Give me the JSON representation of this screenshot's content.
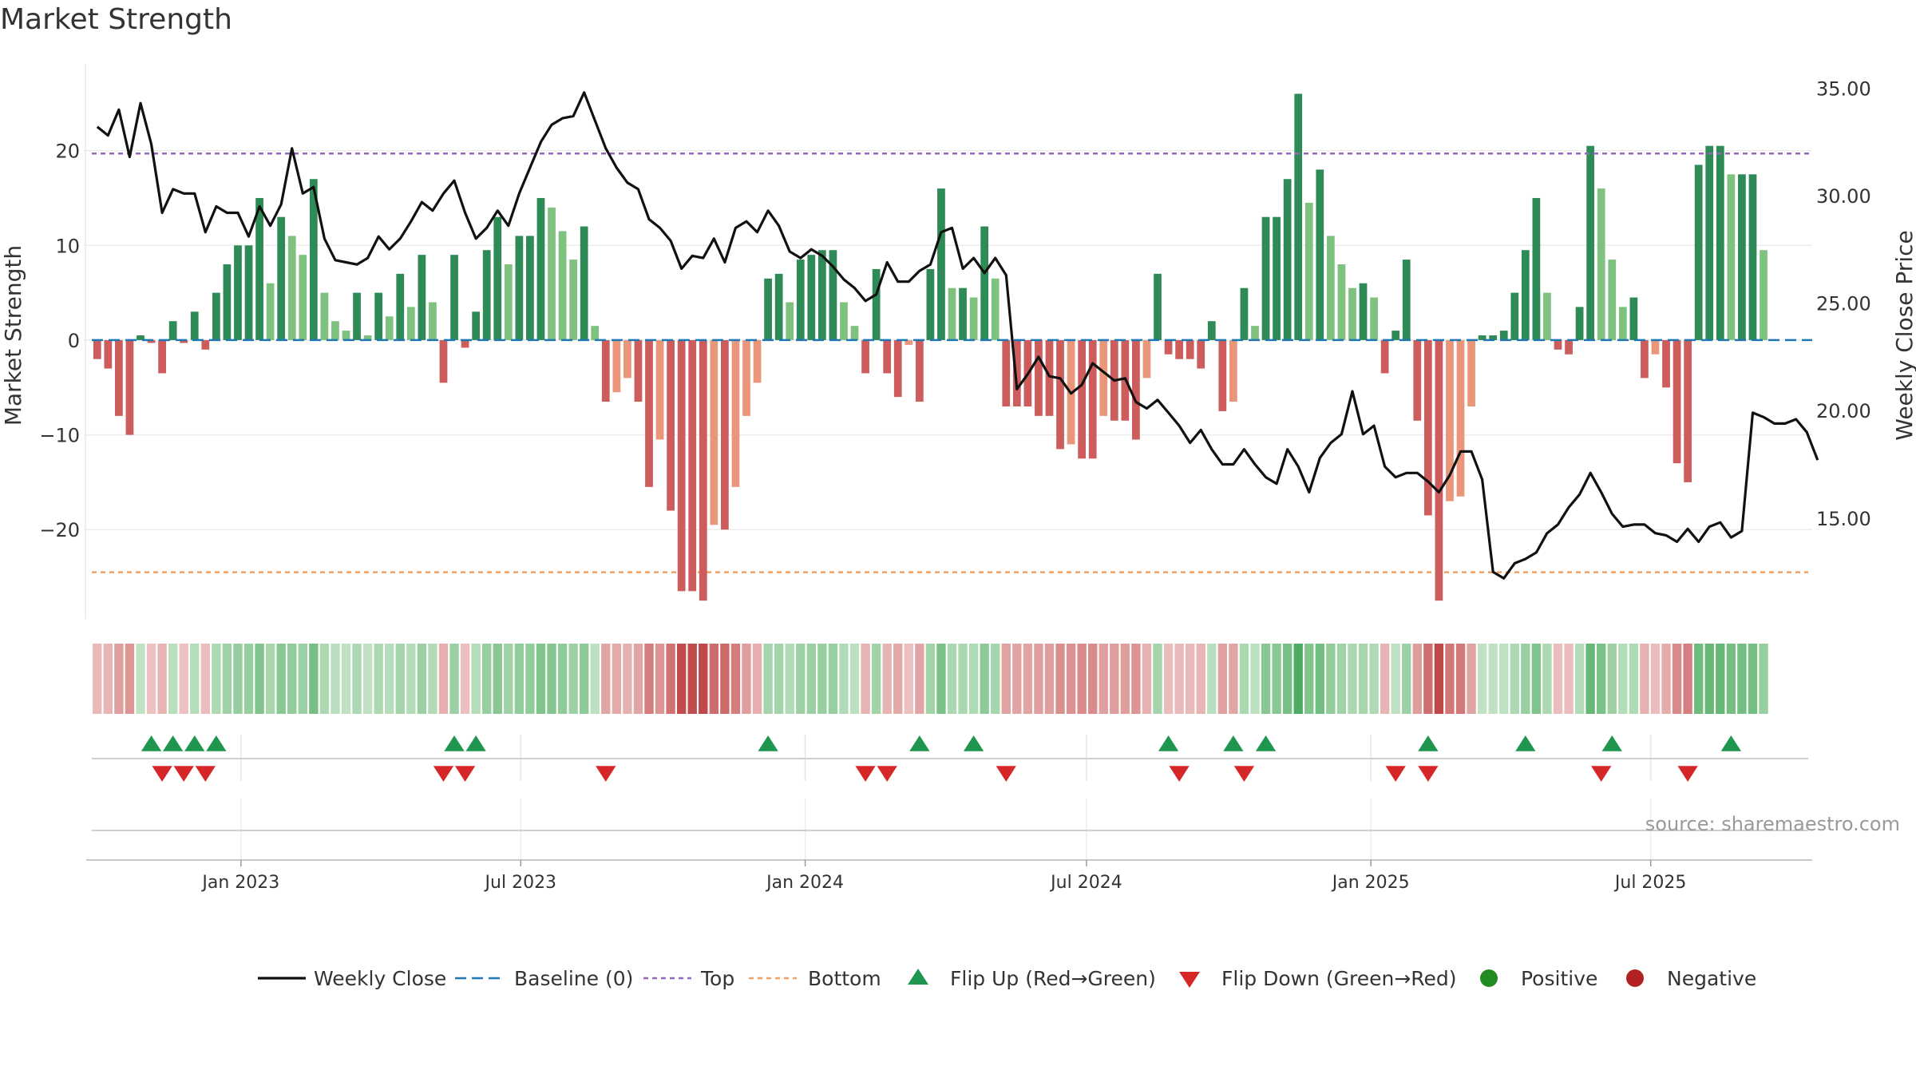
{
  "title": "Market Strength",
  "source": "source: sharemaestro.com",
  "colors": {
    "strong_green": "#2e8b57",
    "light_green": "#7fc27f",
    "strong_red": "#cd5c5c",
    "light_red": "#e9967a",
    "line": "#111111",
    "baseline": "#1f77b4",
    "top": "#9467bd",
    "bottom": "#f0a060",
    "flip_up": "#1e9650",
    "flip_down": "#d62728",
    "positive": "#228b22",
    "negative": "#b22222"
  },
  "legend": {
    "weekly_close": "Weekly Close",
    "baseline": "Baseline (0)",
    "top": "Top",
    "bottom": "Bottom",
    "flip_up": "Flip Up (Red→Green)",
    "flip_down": "Flip Down (Green→Red)",
    "positive": "Positive",
    "negative": "Negative"
  },
  "chart_data": {
    "type": "bar",
    "title": "Market Strength",
    "ylabel": "Market Strength",
    "y2label": "Weekly Close Price",
    "ylim": [
      -29,
      30
    ],
    "y2lim": [
      10.5,
      36.5
    ],
    "yticks": [
      -20,
      -10,
      0,
      10,
      20
    ],
    "ytick_labels": [
      "−20",
      "−10",
      "0",
      "10",
      "20"
    ],
    "y2ticks": [
      15,
      20,
      25,
      30,
      35
    ],
    "y2tick_labels": [
      "15.00",
      "20.00",
      "25.00",
      "30.00",
      "35.00"
    ],
    "top_level": 19.7,
    "bottom_level": -24.5,
    "start_date": "2022-09-30",
    "week_count": 159,
    "x_ticks": [
      {
        "label": "Jan 2023",
        "date": "2023-01-01"
      },
      {
        "label": "Jul 2023",
        "date": "2023-07-01"
      },
      {
        "label": "Jan 2024",
        "date": "2024-01-01"
      },
      {
        "label": "Jul 2024",
        "date": "2024-07-01"
      },
      {
        "label": "Jan 2025",
        "date": "2025-01-01"
      },
      {
        "label": "Jul 2025",
        "date": "2025-07-01"
      }
    ],
    "strength": [
      -2,
      -3,
      -8,
      -10,
      0.5,
      -0.3,
      -3.5,
      2,
      -0.3,
      3,
      -1,
      5,
      8,
      10,
      10,
      15,
      6,
      13,
      11,
      9,
      17,
      5,
      2,
      1,
      5,
      0.5,
      5,
      2.5,
      7,
      3.5,
      9,
      4,
      -4.5,
      9,
      -0.8,
      3,
      9.5,
      13,
      8,
      11,
      11,
      15,
      14,
      11.5,
      8.5,
      12,
      1.5,
      -6.5,
      -5.5,
      -4,
      -6.5,
      -15.5,
      -10.5,
      -18,
      -26.5,
      -26.5,
      -27.5,
      -19.5,
      -20,
      -15.5,
      -8,
      -4.5,
      6.5,
      7,
      4,
      8.5,
      9,
      9.5,
      9.5,
      4,
      1.5,
      -3.5,
      7.5,
      -3.5,
      -6,
      -0.5,
      -6.5,
      7.5,
      16,
      5.5,
      5.5,
      4.5,
      12,
      6.5,
      -7,
      -7,
      -7,
      -8,
      -8,
      -11.5,
      -11,
      -12.5,
      -12.5,
      -8,
      -8.5,
      -8.5,
      -10.5,
      -4,
      7,
      -1.5,
      -2,
      -2,
      -3,
      2,
      -7.5,
      -6.5,
      5.5,
      1.5,
      13,
      13,
      17,
      26,
      14.5,
      18,
      11,
      8,
      5.5,
      6,
      4.5,
      -3.5,
      1,
      8.5,
      -8.5,
      -18.5,
      -27.5,
      -17,
      -16.5,
      -7,
      0.5,
      0.5,
      1,
      5,
      9.5,
      15,
      5,
      -1,
      -1.5,
      3.5,
      20.5,
      16,
      8.5,
      3.5,
      4.5,
      -4,
      -1.5,
      -5,
      -13,
      -15,
      18.5,
      20.5,
      20.5,
      17.5,
      17.5,
      17.5,
      9.5
    ],
    "close": [
      33.2,
      32.8,
      34,
      31.8,
      34.3,
      32.4,
      29.2,
      30.3,
      30.1,
      30.1,
      28.3,
      29.5,
      29.2,
      29.2,
      28.1,
      29.5,
      28.6,
      29.6,
      32.2,
      30.1,
      30.4,
      28,
      27,
      26.9,
      26.8,
      27.1,
      28.1,
      27.5,
      28,
      28.8,
      29.7,
      29.3,
      30.1,
      30.7,
      29.2,
      28,
      28.5,
      29.3,
      28.6,
      30.1,
      31.3,
      32.5,
      33.3,
      33.6,
      33.7,
      34.8,
      33.5,
      32.2,
      31.3,
      30.6,
      30.3,
      28.9,
      28.5,
      27.9,
      26.6,
      27.2,
      27.1,
      28,
      26.9,
      28.5,
      28.8,
      28.3,
      29.3,
      28.6,
      27.4,
      27.1,
      27.5,
      27.2,
      26.7,
      26.1,
      25.7,
      25.1,
      25.4,
      26.9,
      26,
      26,
      26.5,
      26.8,
      28.3,
      28.5,
      26.6,
      27.1,
      26.4,
      27.1,
      26.3,
      21,
      21.7,
      22.5,
      21.6,
      21.5,
      20.8,
      21.2,
      22.2,
      21.8,
      21.4,
      21.5,
      20.4,
      20.1,
      20.5,
      19.9,
      19.3,
      18.5,
      19.1,
      18.2,
      17.5,
      17.5,
      18.2,
      17.5,
      16.9,
      16.6,
      18.2,
      17.4,
      16.2,
      17.8,
      18.5,
      18.9,
      20.9,
      18.9,
      19.3,
      17.4,
      16.9,
      17.1,
      17.1,
      16.7,
      16.2,
      17,
      18.1,
      18.1,
      16.8,
      12.5,
      12.2,
      12.9,
      13.1,
      13.4,
      14.3,
      14.7,
      15.5,
      16.1,
      17.1,
      16.2,
      15.2,
      14.6,
      14.7,
      14.7,
      14.3,
      14.2,
      13.9,
      14.5,
      13.9,
      14.6,
      14.8,
      14.1,
      14.4,
      19.9,
      19.7,
      19.4,
      19.4,
      19.6,
      19,
      17.7
    ],
    "flip_up": [
      "2022-11-04",
      "2022-11-18",
      "2022-12-02",
      "2022-12-16",
      "2023-05-19",
      "2023-06-02",
      "2023-12-08",
      "2024-03-15",
      "2024-04-19",
      "2024-08-23",
      "2024-10-04",
      "2024-10-25",
      "2025-02-07",
      "2025-04-11",
      "2025-06-06",
      "2025-08-22"
    ],
    "flip_down": [
      "2022-11-11",
      "2022-11-25",
      "2022-12-09",
      "2023-05-12",
      "2023-05-26",
      "2023-08-25",
      "2024-02-09",
      "2024-02-23",
      "2024-05-10",
      "2024-08-30",
      "2024-10-11",
      "2025-01-17",
      "2025-02-07",
      "2025-05-30",
      "2025-07-25"
    ]
  }
}
